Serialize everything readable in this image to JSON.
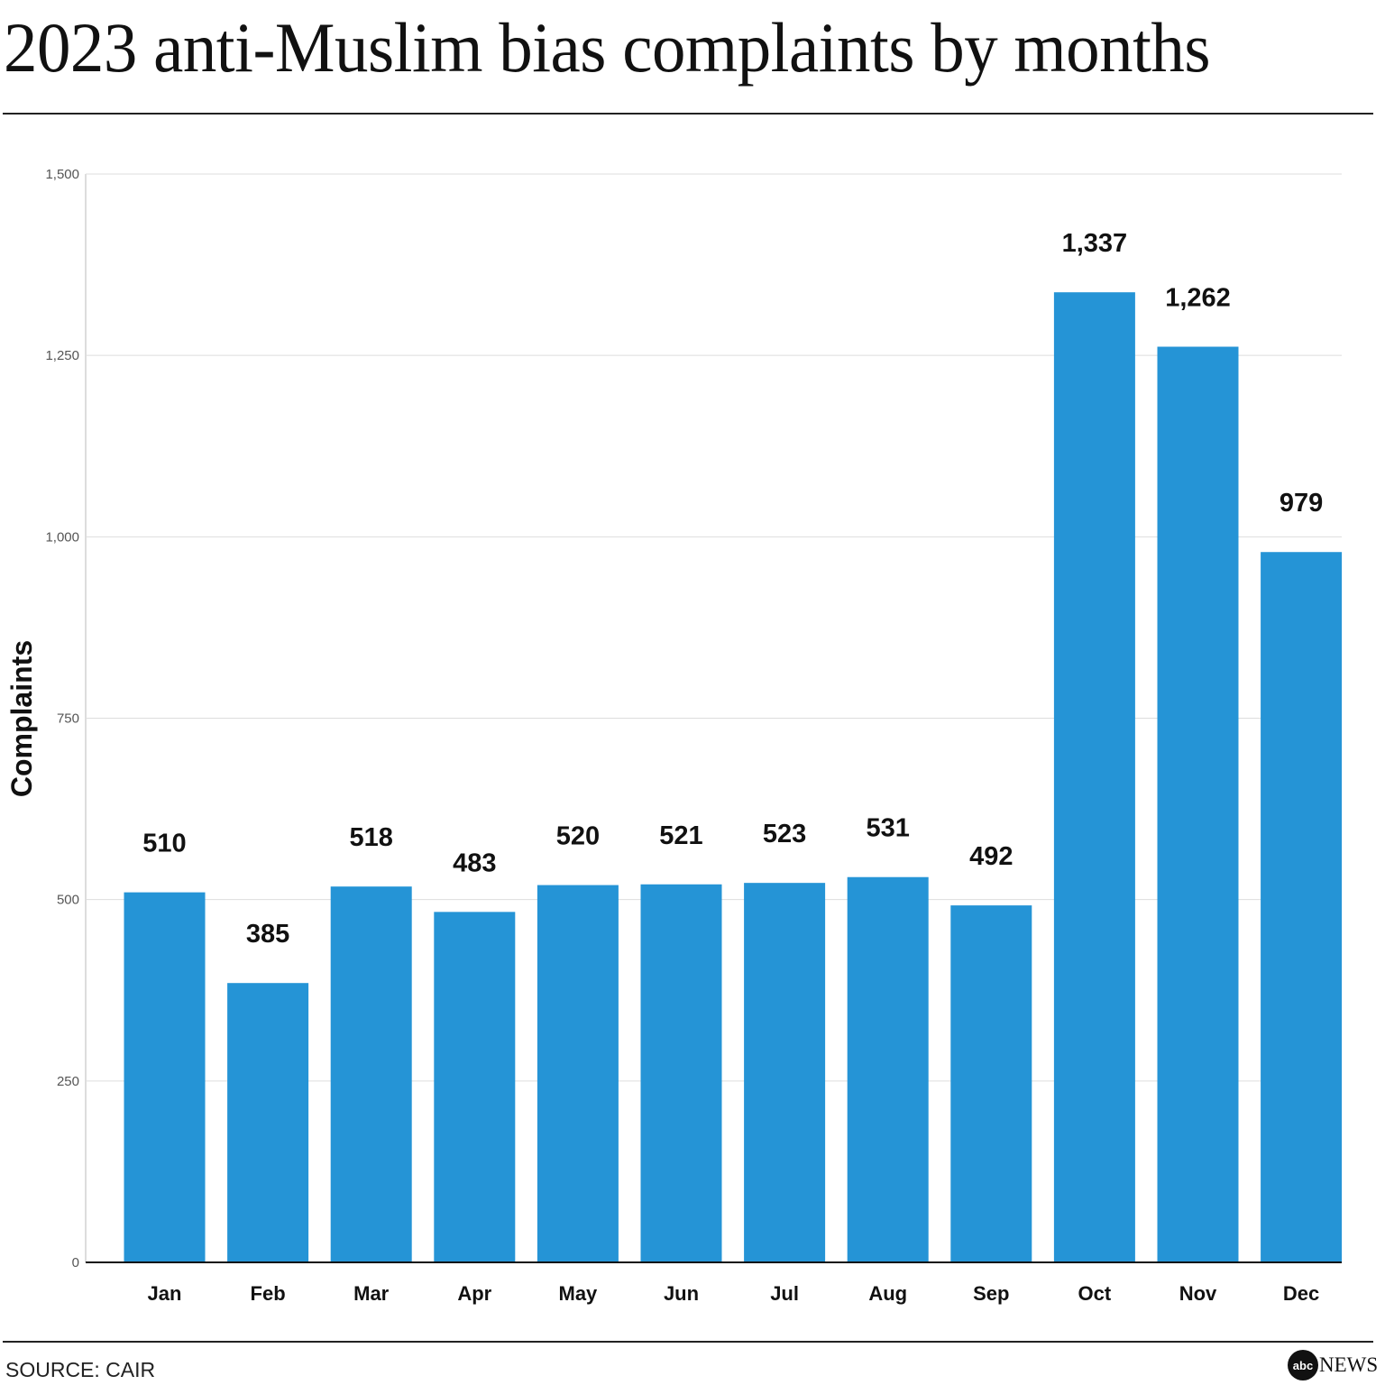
{
  "title": "2023 anti-Muslim bias complaints by months",
  "source": "SOURCE: CAIR",
  "logo": {
    "mark": "abc",
    "text": "NEWS"
  },
  "chart_data": {
    "type": "bar",
    "title": "2023 anti-Muslim bias complaints by months",
    "xlabel": "",
    "ylabel": "Complaints",
    "ylim": [
      0,
      1500
    ],
    "yticks": [
      0,
      250,
      500,
      750,
      1000,
      1250,
      1500
    ],
    "ytick_labels": [
      "0",
      "250",
      "500",
      "750",
      "1,000",
      "1,250",
      "1,500"
    ],
    "grid": true,
    "bar_color": "#2594d6",
    "categories": [
      "Jan",
      "Feb",
      "Mar",
      "Apr",
      "May",
      "Jun",
      "Jul",
      "Aug",
      "Sep",
      "Oct",
      "Nov",
      "Dec"
    ],
    "values": [
      510,
      385,
      518,
      483,
      520,
      521,
      523,
      531,
      492,
      1337,
      1262,
      979
    ],
    "data_labels": [
      "510",
      "385",
      "518",
      "483",
      "520",
      "521",
      "523",
      "531",
      "492",
      "1,337",
      "1,262",
      "979"
    ]
  }
}
